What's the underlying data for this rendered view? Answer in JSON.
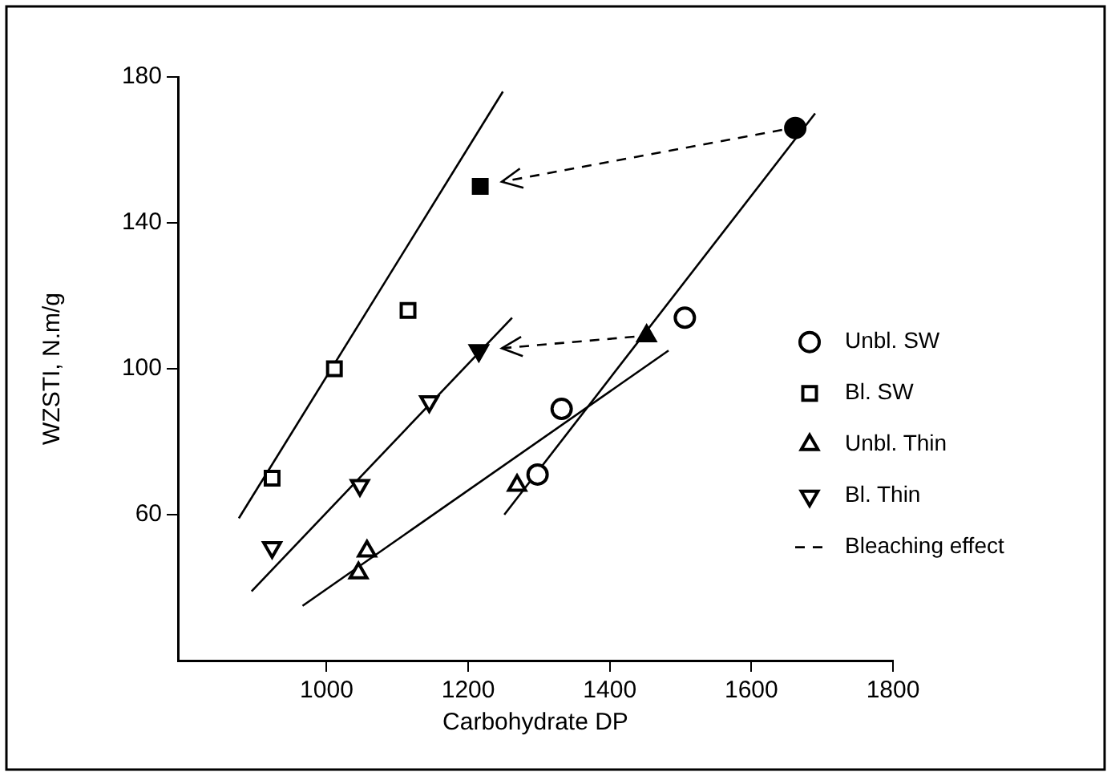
{
  "chart_data": {
    "type": "scatter",
    "xlabel": "Carbohydrate DP",
    "ylabel": "WZSTI, N.m/g",
    "xlim": [
      790,
      1800
    ],
    "xticks": [
      1000,
      1200,
      1400,
      1600,
      1800
    ],
    "ylim": [
      20,
      180
    ],
    "yticks": [
      60,
      100,
      140,
      180
    ],
    "grid": false,
    "legend": "right",
    "annotations": [
      "Bleaching effect"
    ],
    "series": [
      {
        "name": "Unbl. SW",
        "marker": "circle",
        "color": "#000000",
        "x": [
          1298,
          1332,
          1506,
          1662
        ],
        "values": [
          71,
          89,
          114,
          166
        ],
        "colors": [
          "#ffffff",
          "#ffffff",
          "#ffffff",
          "#000000"
        ]
      },
      {
        "name": "Bl. SW",
        "marker": "square",
        "color": "#000000",
        "x": [
          923,
          1011,
          1115,
          1217
        ],
        "values": [
          70,
          100,
          116,
          150
        ],
        "colors": [
          "#ffffff",
          "#ffffff",
          "#ffffff",
          "#000000"
        ]
      },
      {
        "name": "Unbl. Thin",
        "marker": "triangle",
        "color": "#000000",
        "x": [
          1045,
          1057,
          1269,
          1452
        ],
        "values": [
          44,
          50,
          68,
          109
        ],
        "colors": [
          "#ffffff",
          "#ffffff",
          "#ffffff",
          "#000000"
        ]
      },
      {
        "name": "Bl. Thin",
        "marker": "triangle-down",
        "color": "#000000",
        "x": [
          923,
          1047,
          1145,
          1215
        ],
        "values": [
          51,
          68,
          91,
          105
        ],
        "colors": [
          "#ffffff",
          "#ffffff",
          "#ffffff",
          "#000000"
        ]
      },
      {
        "type": "line",
        "marker": "none",
        "color": "#000000",
        "x": [
          876,
          1249
        ],
        "values": [
          59,
          176
        ]
      },
      {
        "type": "line",
        "marker": "none",
        "color": "#000000",
        "x": [
          894,
          1262
        ],
        "values": [
          39,
          114
        ]
      },
      {
        "type": "line",
        "marker": "none",
        "color": "#000000",
        "x": [
          966,
          1483
        ],
        "values": [
          35,
          105
        ]
      },
      {
        "type": "line",
        "marker": "none",
        "color": "#000000",
        "x": [
          1251,
          1690
        ],
        "values": [
          60,
          170
        ]
      }
    ]
  }
}
